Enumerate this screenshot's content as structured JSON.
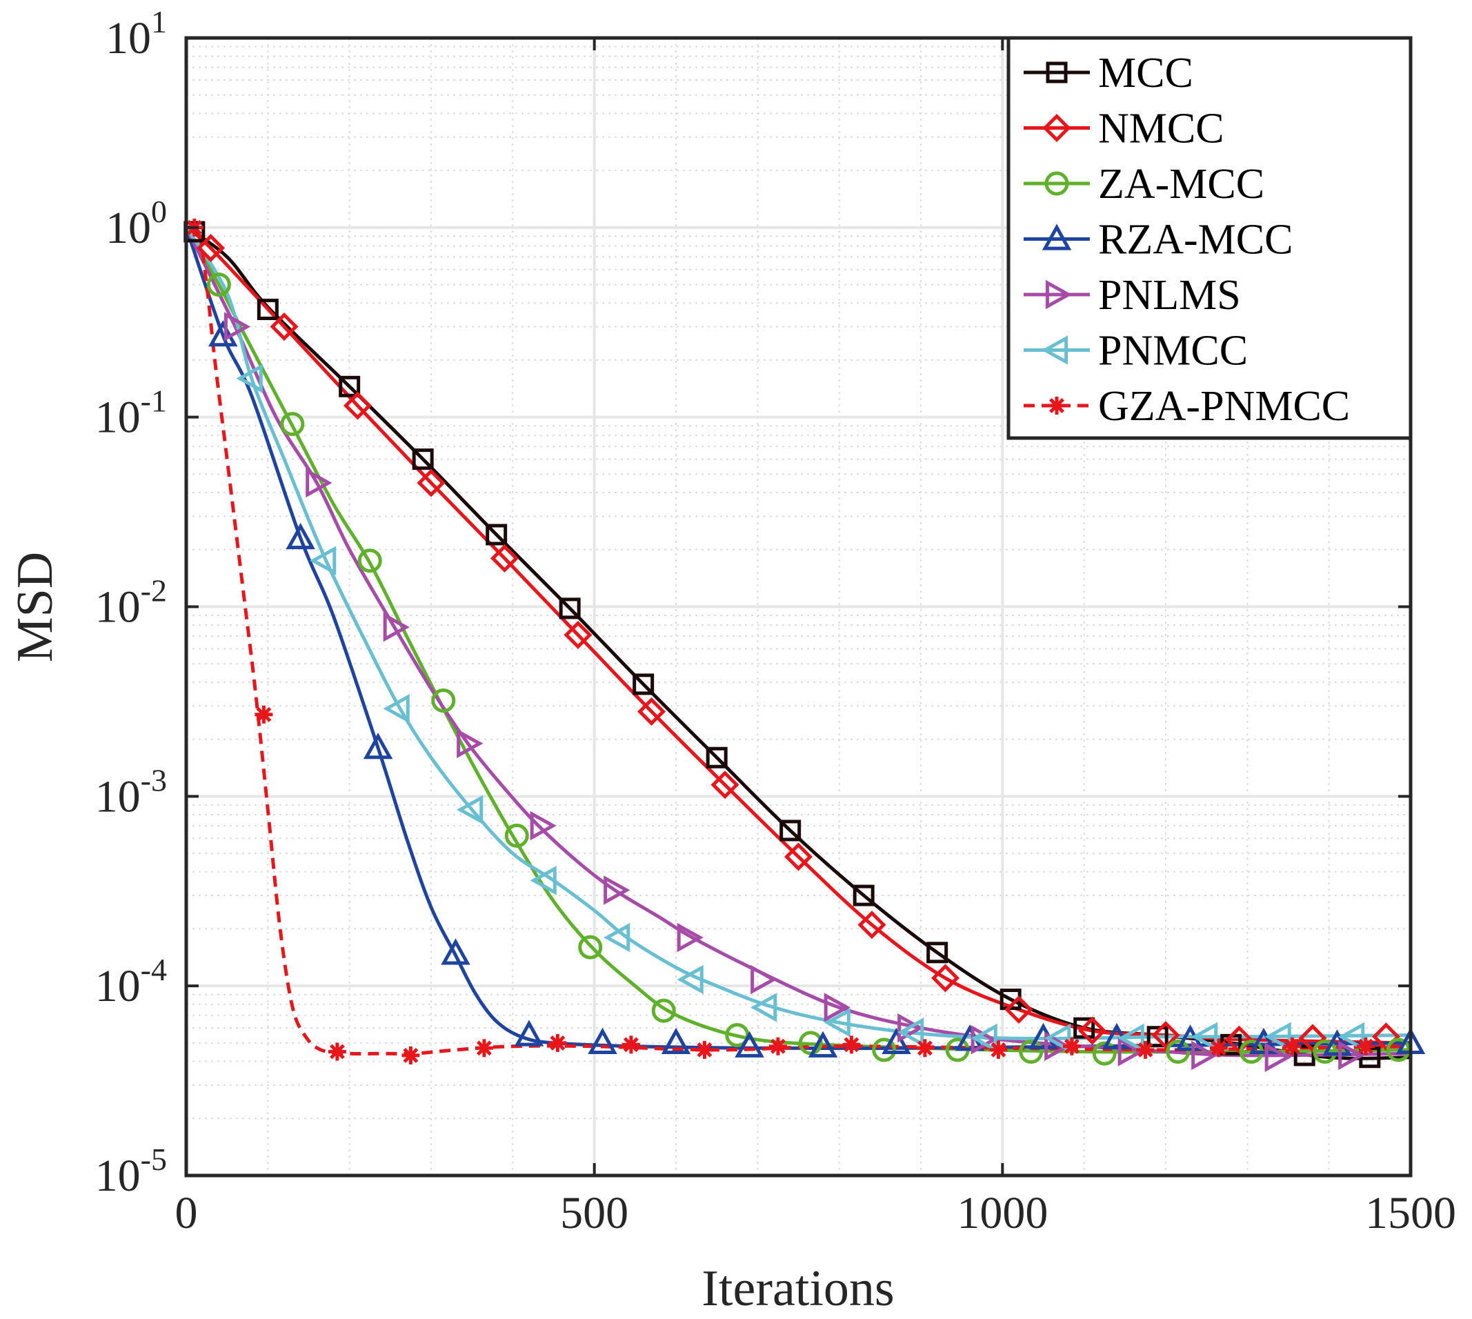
{
  "chart_data": {
    "type": "line",
    "title": "",
    "xlabel": "Iterations",
    "ylabel": "MSD",
    "xlim": [
      0,
      1500
    ],
    "ylim_log10": [
      -5,
      1
    ],
    "yscale": "log",
    "grid": true,
    "legend_position": "top-right",
    "x_ticks": [
      {
        "value": 0,
        "label": "0"
      },
      {
        "value": 500,
        "label": "500"
      },
      {
        "value": 1000,
        "label": "1000"
      },
      {
        "value": 1500,
        "label": "1500"
      }
    ],
    "y_ticks": [
      {
        "exp": 1,
        "base": "10",
        "sup": "1"
      },
      {
        "exp": 0,
        "base": "10",
        "sup": "0"
      },
      {
        "exp": -1,
        "base": "10",
        "sup": "-1"
      },
      {
        "exp": -2,
        "base": "10",
        "sup": "-2"
      },
      {
        "exp": -3,
        "base": "10",
        "sup": "-3"
      },
      {
        "exp": -4,
        "base": "10",
        "sup": "-4"
      },
      {
        "exp": -5,
        "base": "10",
        "sup": "-5"
      }
    ],
    "series": [
      {
        "name": "MCC",
        "color": "#1a0a0a",
        "marker": "square",
        "dash": "solid",
        "points": [
          [
            0,
            1.0
          ],
          [
            50,
            0.7
          ],
          [
            100,
            0.38
          ],
          [
            200,
            0.145
          ],
          [
            290,
            0.06
          ],
          [
            380,
            0.024
          ],
          [
            470,
            0.0098
          ],
          [
            560,
            0.0039
          ],
          [
            650,
            0.0016
          ],
          [
            740,
            0.00066
          ],
          [
            830,
            0.0003
          ],
          [
            920,
            0.00015
          ],
          [
            1010,
            8.5e-05
          ],
          [
            1100,
            6e-05
          ],
          [
            1190,
            5.5e-05
          ],
          [
            1280,
            5e-05
          ],
          [
            1400,
            4.2e-05
          ],
          [
            1500,
            4.2e-05
          ]
        ],
        "markers": [
          [
            10,
            0.95
          ],
          [
            100,
            0.37
          ],
          [
            200,
            0.145
          ],
          [
            290,
            0.06
          ],
          [
            380,
            0.024
          ],
          [
            470,
            0.0098
          ],
          [
            560,
            0.0039
          ],
          [
            650,
            0.0016
          ],
          [
            740,
            0.00066
          ],
          [
            830,
            0.0003
          ],
          [
            920,
            0.00015
          ],
          [
            1010,
            8.5e-05
          ],
          [
            1100,
            6e-05
          ],
          [
            1190,
            5.4e-05
          ],
          [
            1280,
            4.9e-05
          ],
          [
            1370,
            4.3e-05
          ],
          [
            1450,
            4.2e-05
          ]
        ]
      },
      {
        "name": "NMCC",
        "color": "#e8151b",
        "marker": "diamond",
        "dash": "solid",
        "points": [
          [
            0,
            1.0
          ],
          [
            30,
            0.78
          ],
          [
            120,
            0.3
          ],
          [
            210,
            0.115
          ],
          [
            300,
            0.045
          ],
          [
            390,
            0.018
          ],
          [
            480,
            0.0071
          ],
          [
            570,
            0.0028
          ],
          [
            660,
            0.00115
          ],
          [
            750,
            0.00048
          ],
          [
            840,
            0.00021
          ],
          [
            930,
            0.00011
          ],
          [
            1020,
            7.5e-05
          ],
          [
            1110,
            5.8e-05
          ],
          [
            1200,
            5.5e-05
          ],
          [
            1300,
            5.2e-05
          ],
          [
            1500,
            5e-05
          ]
        ],
        "markers": [
          [
            30,
            0.78
          ],
          [
            120,
            0.3
          ],
          [
            210,
            0.115
          ],
          [
            300,
            0.045
          ],
          [
            390,
            0.018
          ],
          [
            480,
            0.0071
          ],
          [
            570,
            0.0028
          ],
          [
            660,
            0.00115
          ],
          [
            750,
            0.00048
          ],
          [
            840,
            0.00021
          ],
          [
            930,
            0.00011
          ],
          [
            1020,
            7.5e-05
          ],
          [
            1110,
            5.8e-05
          ],
          [
            1200,
            5.5e-05
          ],
          [
            1290,
            5.2e-05
          ],
          [
            1380,
            5.3e-05
          ],
          [
            1470,
            5.4e-05
          ]
        ]
      },
      {
        "name": "ZA-MCC",
        "color": "#5fb12b",
        "marker": "circle",
        "dash": "solid",
        "points": [
          [
            0,
            1.0
          ],
          [
            40,
            0.5
          ],
          [
            70,
            0.28
          ],
          [
            130,
            0.09
          ],
          [
            180,
            0.035
          ],
          [
            225,
            0.017
          ],
          [
            270,
            0.007
          ],
          [
            310,
            0.0032
          ],
          [
            350,
            0.0015
          ],
          [
            400,
            0.00062
          ],
          [
            450,
            0.00028
          ],
          [
            500,
            0.000155
          ],
          [
            550,
            0.0001
          ],
          [
            590,
            7.4e-05
          ],
          [
            640,
            6e-05
          ],
          [
            700,
            5.2e-05
          ],
          [
            780,
            4.9e-05
          ],
          [
            900,
            4.7e-05
          ],
          [
            1100,
            4.5e-05
          ],
          [
            1300,
            4.5e-05
          ],
          [
            1500,
            4.6e-05
          ]
        ],
        "markers": [
          [
            40,
            0.5
          ],
          [
            130,
            0.092
          ],
          [
            225,
            0.0175
          ],
          [
            315,
            0.0032
          ],
          [
            405,
            0.00062
          ],
          [
            495,
            0.00016
          ],
          [
            585,
            7.4e-05
          ],
          [
            675,
            5.5e-05
          ],
          [
            765,
            5e-05
          ],
          [
            855,
            4.6e-05
          ],
          [
            945,
            4.6e-05
          ],
          [
            1035,
            4.5e-05
          ],
          [
            1125,
            4.4e-05
          ],
          [
            1215,
            4.5e-05
          ],
          [
            1305,
            4.5e-05
          ],
          [
            1395,
            4.5e-05
          ],
          [
            1485,
            4.6e-05
          ]
        ]
      },
      {
        "name": "RZA-MCC",
        "color": "#1e449f",
        "marker": "triangle-up",
        "dash": "solid",
        "points": [
          [
            0,
            1.0
          ],
          [
            45,
            0.27
          ],
          [
            80,
            0.13
          ],
          [
            140,
            0.023
          ],
          [
            180,
            0.009
          ],
          [
            235,
            0.0018
          ],
          [
            270,
            0.0006
          ],
          [
            300,
            0.00026
          ],
          [
            330,
            0.000145
          ],
          [
            355,
            9e-05
          ],
          [
            380,
            6.5e-05
          ],
          [
            410,
            5.4e-05
          ],
          [
            450,
            5e-05
          ],
          [
            550,
            4.8e-05
          ],
          [
            700,
            4.7e-05
          ],
          [
            900,
            4.7e-05
          ],
          [
            1100,
            4.8e-05
          ],
          [
            1300,
            4.9e-05
          ],
          [
            1500,
            5e-05
          ]
        ],
        "markers": [
          [
            45,
            0.27
          ],
          [
            140,
            0.023
          ],
          [
            235,
            0.0018
          ],
          [
            330,
            0.000148
          ],
          [
            420,
            5.5e-05
          ],
          [
            510,
            5e-05
          ],
          [
            600,
            5e-05
          ],
          [
            690,
            4.8e-05
          ],
          [
            780,
            4.8e-05
          ],
          [
            870,
            5e-05
          ],
          [
            960,
            5.2e-05
          ],
          [
            1050,
            5.3e-05
          ],
          [
            1140,
            5.3e-05
          ],
          [
            1230,
            5.2e-05
          ],
          [
            1320,
            5e-05
          ],
          [
            1410,
            4.9e-05
          ],
          [
            1500,
            5e-05
          ]
        ]
      },
      {
        "name": "PNLMS",
        "color": "#a64ba8",
        "marker": "triangle-right",
        "dash": "solid",
        "points": [
          [
            0,
            1.0
          ],
          [
            60,
            0.3
          ],
          [
            110,
            0.1
          ],
          [
            160,
            0.045
          ],
          [
            200,
            0.02
          ],
          [
            255,
            0.0078
          ],
          [
            300,
            0.0037
          ],
          [
            345,
            0.0019
          ],
          [
            390,
            0.0011
          ],
          [
            430,
            0.00071
          ],
          [
            480,
            0.00045
          ],
          [
            525,
            0.00032
          ],
          [
            580,
            0.00023
          ],
          [
            620,
            0.00018
          ],
          [
            700,
            0.00012
          ],
          [
            800,
            7.7e-05
          ],
          [
            900,
            6e-05
          ],
          [
            1000,
            5.2e-05
          ],
          [
            1100,
            4.8e-05
          ],
          [
            1200,
            4.5e-05
          ],
          [
            1300,
            4.3e-05
          ],
          [
            1500,
            4.4e-05
          ]
        ],
        "markers": [
          [
            60,
            0.3
          ],
          [
            160,
            0.045
          ],
          [
            255,
            0.0078
          ],
          [
            345,
            0.0019
          ],
          [
            435,
            0.0007
          ],
          [
            525,
            0.00032
          ],
          [
            615,
            0.00018
          ],
          [
            705,
            0.000108
          ],
          [
            795,
            7.7e-05
          ],
          [
            885,
            6e-05
          ],
          [
            975,
            5.2e-05
          ],
          [
            1065,
            4.8e-05
          ],
          [
            1155,
            4.5e-05
          ],
          [
            1245,
            4.3e-05
          ],
          [
            1335,
            4.2e-05
          ],
          [
            1425,
            4.3e-05
          ]
        ]
      },
      {
        "name": "PNMCC",
        "color": "#69bfd2",
        "marker": "triangle-left",
        "dash": "solid",
        "points": [
          [
            0,
            1.0
          ],
          [
            50,
            0.45
          ],
          [
            80,
            0.16
          ],
          [
            120,
            0.06
          ],
          [
            170,
            0.018
          ],
          [
            220,
            0.0065
          ],
          [
            260,
            0.003
          ],
          [
            300,
            0.0016
          ],
          [
            350,
            0.00085
          ],
          [
            400,
            0.0005
          ],
          [
            450,
            0.00036
          ],
          [
            500,
            0.00025
          ],
          [
            540,
            0.00018
          ],
          [
            600,
            0.000125
          ],
          [
            650,
            0.0001
          ],
          [
            720,
            7.7e-05
          ],
          [
            800,
            6.4e-05
          ],
          [
            900,
            5.6e-05
          ],
          [
            1000,
            5.3e-05
          ],
          [
            1100,
            5.3e-05
          ],
          [
            1200,
            5.4e-05
          ],
          [
            1300,
            5.4e-05
          ],
          [
            1500,
            5.5e-05
          ]
        ],
        "markers": [
          [
            80,
            0.16
          ],
          [
            170,
            0.0175
          ],
          [
            260,
            0.0029
          ],
          [
            350,
            0.00085
          ],
          [
            440,
            0.00036
          ],
          [
            530,
            0.00018
          ],
          [
            620,
            0.000108
          ],
          [
            710,
            7.7e-05
          ],
          [
            800,
            6.4e-05
          ],
          [
            890,
            5.7e-05
          ],
          [
            980,
            5.3e-05
          ],
          [
            1070,
            5.3e-05
          ],
          [
            1160,
            5.3e-05
          ],
          [
            1250,
            5.4e-05
          ],
          [
            1340,
            5.4e-05
          ],
          [
            1430,
            5.4e-05
          ]
        ]
      },
      {
        "name": "GZA-PNMCC",
        "color": "#e8151b",
        "marker": "asterisk",
        "dash": "dashed",
        "points": [
          [
            0,
            1.0
          ],
          [
            15,
            0.95
          ],
          [
            25,
            0.5
          ],
          [
            35,
            0.2
          ],
          [
            50,
            0.06
          ],
          [
            70,
            0.012
          ],
          [
            85,
            0.0035
          ],
          [
            100,
            0.00085
          ],
          [
            115,
            0.0002
          ],
          [
            130,
            7.8e-05
          ],
          [
            145,
            5.5e-05
          ],
          [
            165,
            4.6e-05
          ],
          [
            200,
            4.4e-05
          ],
          [
            240,
            4.4e-05
          ],
          [
            280,
            4.4e-05
          ],
          [
            330,
            4.6e-05
          ],
          [
            400,
            4.8e-05
          ],
          [
            500,
            4.8e-05
          ],
          [
            650,
            4.6e-05
          ],
          [
            800,
            4.8e-05
          ],
          [
            1000,
            4.7e-05
          ],
          [
            1200,
            4.6e-05
          ],
          [
            1350,
            4.7e-05
          ],
          [
            1500,
            4.8e-05
          ]
        ],
        "markers": [
          [
            10,
            1.0
          ],
          [
            95,
            0.0027
          ],
          [
            185,
            4.5e-05
          ],
          [
            275,
            4.3e-05
          ],
          [
            365,
            4.7e-05
          ],
          [
            455,
            5e-05
          ],
          [
            545,
            4.9e-05
          ],
          [
            635,
            4.6e-05
          ],
          [
            725,
            4.8e-05
          ],
          [
            815,
            4.9e-05
          ],
          [
            905,
            4.7e-05
          ],
          [
            995,
            4.6e-05
          ],
          [
            1085,
            4.8e-05
          ],
          [
            1175,
            4.6e-05
          ],
          [
            1265,
            4.7e-05
          ],
          [
            1355,
            4.8e-05
          ],
          [
            1445,
            4.8e-05
          ]
        ]
      }
    ]
  }
}
